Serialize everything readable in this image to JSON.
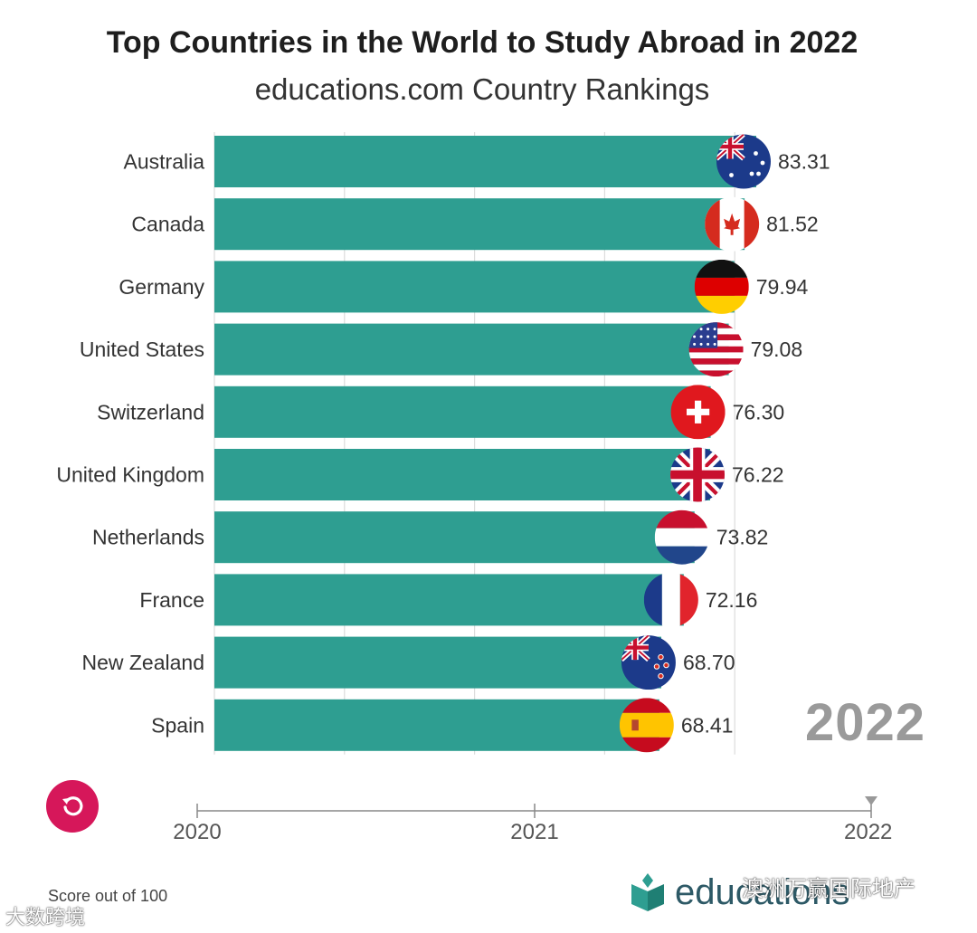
{
  "chart_data": {
    "type": "bar",
    "orientation": "horizontal",
    "title": "Top Countries in the World to Study Abroad in 2022",
    "subtitle": "educations.com Country Rankings",
    "categories": [
      "Australia",
      "Canada",
      "Germany",
      "United States",
      "Switzerland",
      "United Kingdom",
      "Netherlands",
      "France",
      "New Zealand",
      "Spain"
    ],
    "values": [
      83.31,
      81.52,
      79.94,
      79.08,
      76.3,
      76.22,
      73.82,
      72.16,
      68.7,
      68.41
    ],
    "value_labels": [
      "83.31",
      "81.52",
      "79.94",
      "79.08",
      "76.30",
      "76.22",
      "73.82",
      "72.16",
      "68.70",
      "68.41"
    ],
    "flags": [
      "australia-flag",
      "canada-flag",
      "germany-flag",
      "us-flag",
      "switzerland-flag",
      "uk-flag",
      "netherlands-flag",
      "france-flag",
      "new-zealand-flag",
      "spain-flag"
    ],
    "bar_color": "#2e9e91",
    "grid": true,
    "xlabel": "Score out of 100",
    "current_year": "2022"
  },
  "timeline": {
    "ticks": [
      "2020",
      "2021",
      "2022"
    ],
    "current": "2022"
  },
  "controls": {
    "replay_icon": "replay-icon"
  },
  "footer": {
    "note": "Score out of 100",
    "brand": "educations"
  },
  "watermarks": {
    "right": "澳洲万赢国际地产",
    "left": "大数跨境"
  },
  "colors": {
    "bar": "#2e9e91",
    "replay": "#d6175a",
    "year": "#9a9a9a"
  }
}
